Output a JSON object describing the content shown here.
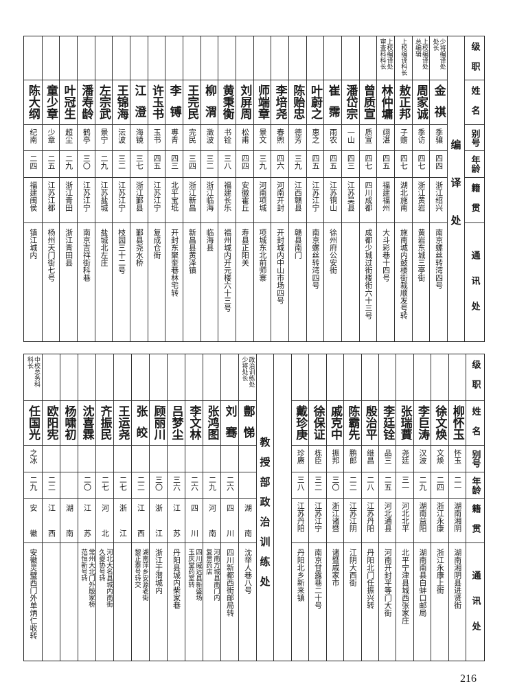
{
  "headers": {
    "rank": "级职",
    "name": "姓名",
    "alias": "别号",
    "age": "年龄",
    "native": "籍贯",
    "address": "通讯处"
  },
  "top": {
    "section": "编译处",
    "people": [
      {
        "rank": [
          "少将编译处",
          "处长"
        ],
        "name": "金祺",
        "alias": "季骧",
        "age": "四四",
        "native": "浙江绍兴",
        "address": [
          "南京螺丝转湾四号"
        ]
      },
      {
        "rank": [
          "上校编译处",
          "总编辑"
        ],
        "name": "周家诚",
        "alias": "季访",
        "age": "四七",
        "native": "浙江黄岩",
        "address": [
          "黄岩东城三亭街"
        ]
      },
      {
        "rank": [
          "上校编译科长"
        ],
        "name": "敖正邦",
        "alias": "子赡",
        "age": "四七",
        "native": "湖北施南",
        "address": [
          "施南城内鼓楼街裁顺发号转"
        ]
      },
      {
        "rank": [
          "上校编译处",
          "审查科科长"
        ],
        "name": "林仲墉",
        "alias": "翊湛",
        "age": "四五",
        "native": "福建福州",
        "address": [
          "大斗彩巷十四号"
        ]
      },
      {
        "rank": [],
        "name": "曾质宣",
        "alias": "质宣",
        "age": "四七",
        "native": "四川成都",
        "address": [
          "成都少城过街楼街六十三号"
        ]
      },
      {
        "rank": [],
        "name": "潘岱宗",
        "alias": "一山",
        "age": "四三",
        "native": "江苏吴县",
        "address": []
      },
      {
        "rank": [],
        "name": "崔霈",
        "alias": "雨农",
        "age": "四五",
        "native": "江苏铜山",
        "address": [
          "徐州府公安街"
        ]
      },
      {
        "rank": [],
        "name": "叶蔚之",
        "alias": "惠之",
        "age": "四五",
        "native": "江苏江宁",
        "address": [
          "南京螺丝转湾四号"
        ]
      },
      {
        "rank": [],
        "name": "陈贻忠",
        "alias": "德芳",
        "age": "三九",
        "native": "江西赣县",
        "address": [
          "赣县南门"
        ]
      },
      {
        "rank": [],
        "name": "李培尧",
        "alias": "春煦",
        "age": "四六",
        "native": "河南开封",
        "address": [
          "开封城内中山市场四号"
        ]
      },
      {
        "rank": [],
        "name": "师端章",
        "alias": "景文",
        "age": "三九",
        "native": "河南项城",
        "address": [
          "项城东北前师寨"
        ]
      },
      {
        "rank": [],
        "name": "刘屏周",
        "alias": "松甫",
        "age": "四四",
        "native": "安徽霍丘",
        "address": [
          "寿县正阳关"
        ]
      },
      {
        "rank": [],
        "name": "黄秉衡",
        "alias": "书铨",
        "age": "三八",
        "native": "福建长乐",
        "address": [
          "福州城内开元楼六十三号"
        ]
      },
      {
        "rank": [],
        "name": "柳渭",
        "alias": "澂波",
        "age": "三二",
        "native": "浙江临海",
        "address": [
          "临海县"
        ]
      },
      {
        "rank": [],
        "name": "王完民",
        "alias": "完民",
        "age": "三四",
        "native": "浙江新昌",
        "address": [
          "新昌县黄泽镇"
        ]
      },
      {
        "rank": [],
        "name": "李镈",
        "alias": "尃青",
        "age": "四三",
        "native": "北平宝坻",
        "address": [
          "开封东聚奎巷林宅转"
        ]
      },
      {
        "rank": [],
        "name": "许玉书",
        "alias": "玉书",
        "age": "四五",
        "native": "江苏江宁",
        "address": [
          "复成仓街"
        ]
      },
      {
        "rank": [],
        "name": "江澄",
        "alias": "海镜",
        "age": "三七",
        "native": "浙江鄞县",
        "address": [
          "鄞县尧水桥"
        ]
      },
      {
        "rank": [],
        "name": "王锦海",
        "alias": "沄波",
        "age": "三二",
        "native": "江苏江宁",
        "address": [
          "枝园三十二号"
        ]
      },
      {
        "rank": [],
        "name": "左宗武",
        "alias": "景宁",
        "age": "二九",
        "native": "江苏盐城",
        "address": [
          "盐城北左庄"
        ]
      },
      {
        "rank": [],
        "name": "潘寿龄",
        "alias": "鹤亭",
        "age": "三〇",
        "native": "江苏江宁",
        "address": [
          "南京吉祥街科巷"
        ]
      },
      {
        "rank": [],
        "name": "叶冠生",
        "alias": "超尘",
        "age": "二九",
        "native": "浙江青田",
        "address": [
          "浙江青田县"
        ]
      },
      {
        "rank": [],
        "name": "童少章",
        "alias": "少章",
        "age": "二五",
        "native": "江苏江都",
        "address": [
          "杨州天门街七号"
        ]
      },
      {
        "rank": [],
        "name": "陈大纲",
        "alias": "纪南",
        "age": "二四",
        "native": "福建闽侯",
        "address": [
          "镇江城内"
        ]
      }
    ]
  },
  "bottom": {
    "section": "教授部政治训练处",
    "right_people": [
      {
        "rank": [],
        "name": "柳怀玉",
        "alias": "怀玉",
        "age": "二一",
        "native": "湖南湘阴",
        "address": [
          "湖南湘阴县进贤街"
        ]
      },
      {
        "rank": [],
        "name": "徐文焕",
        "alias": "文焕",
        "age": "二四",
        "native": "浙江永康",
        "address": [
          "浙江永康上街"
        ]
      },
      {
        "rank": [],
        "name": "李巨涛",
        "alias": "汉波",
        "age": "二九",
        "native": "湖南益阳",
        "address": [
          "湖南南县白蚌口邮局"
        ]
      },
      {
        "rank": [],
        "name": "张瑞蕡",
        "alias": "尧廷",
        "age": "三一",
        "native": "河北北平",
        "address": [
          "北平宁津县城西张家庄"
        ]
      },
      {
        "rank": [],
        "name": "李廷铨",
        "alias": "品三",
        "age": "二五",
        "native": "河北通县",
        "address": [
          "河南开封平等门大街"
        ]
      },
      {
        "rank": [],
        "name": "殷治平",
        "alias": "继昌",
        "age": "二八",
        "native": "江苏丹阳",
        "address": [
          "丹阳北门任振兴转"
        ]
      },
      {
        "rank": [],
        "name": "陈霸先",
        "alias": "鹏郎",
        "age": "二二",
        "native": "江苏江阴",
        "address": [
          "江阴大西街"
        ]
      },
      {
        "rank": [],
        "name": "戚克中",
        "alias": "振邦",
        "age": "三〇",
        "native": "浙江诸暨",
        "address": [
          "诸暨戚家市"
        ]
      },
      {
        "rank": [],
        "name": "徐保证",
        "alias": "栋臣",
        "age": "三二",
        "native": "江苏江宁",
        "address": [
          "南京甘露巷二十号"
        ]
      },
      {
        "rank": [],
        "name": "戴珍庚",
        "alias": "珍赓",
        "age": "三八",
        "native": "江苏丹阳",
        "address": [
          "丹阳北乡新来镇"
        ]
      }
    ],
    "left_people": [
      {
        "rank": [
          "政治训练处",
          "少将处长"
        ],
        "name": "鄷悌",
        "alias": "",
        "age": "",
        "native": "湖南",
        "address": [
          "沈举人巷八号"
        ]
      },
      {
        "rank": [],
        "name": "刘骞",
        "alias": "",
        "age": "二六",
        "native": "四川",
        "address": [
          "四川新都西街邮局转"
        ]
      },
      {
        "rank": [],
        "name": "张鸿图",
        "alias": "",
        "age": "二九",
        "native": "河南",
        "address": [
          "河南方城县南门内",
          "复景药店"
        ]
      },
      {
        "rank": [],
        "name": "李文林",
        "alias": "",
        "age": "二六",
        "native": "四川",
        "address": [
          "四川威远县新盛场",
          "玉庆堂药室转"
        ]
      },
      {
        "rank": [],
        "name": "吕梦尘",
        "alias": "",
        "age": "三六",
        "native": "江苏",
        "address": [
          "丹阳县城内柴家巷"
        ]
      },
      {
        "rank": [],
        "name": "顾丽川",
        "alias": "",
        "age": "三〇",
        "native": "浙江",
        "address": [
          "浙江于潜城内"
        ]
      },
      {
        "rank": [],
        "name": "张皎",
        "alias": "",
        "age": "二二",
        "native": "江西",
        "address": [
          "湖南萍乡安源老街",
          "黎正泰号转交"
        ]
      },
      {
        "rank": [],
        "name": "王运尧",
        "alias": "",
        "age": "二七",
        "native": "浙江",
        "address": []
      },
      {
        "rank": [],
        "name": "齐振民",
        "alias": "",
        "age": "二七",
        "native": "河北",
        "address": [
          "河北大名县城内南街",
          "久夔协号转"
        ]
      },
      {
        "rank": [],
        "name": "沈喜霖",
        "alias": "",
        "age": "二〇",
        "native": "江苏",
        "address": [
          "常州大北门外殷家桥",
          "范恒新号转"
        ]
      },
      {
        "rank": [],
        "name": "杨啸初",
        "alias": "",
        "age": "",
        "native": "湖南",
        "address": []
      },
      {
        "rank": [],
        "name": "欧阳宪",
        "alias": "",
        "age": "二二",
        "native": "江西",
        "address": []
      },
      {
        "rank": [
          "中校总务科",
          "科长"
        ],
        "name": "任国光",
        "alias": "之冰",
        "age": "二九",
        "native": "安徽",
        "address": [
          "安徽灵璧西门外单炳仁收转"
        ]
      }
    ]
  },
  "page_number": "216"
}
